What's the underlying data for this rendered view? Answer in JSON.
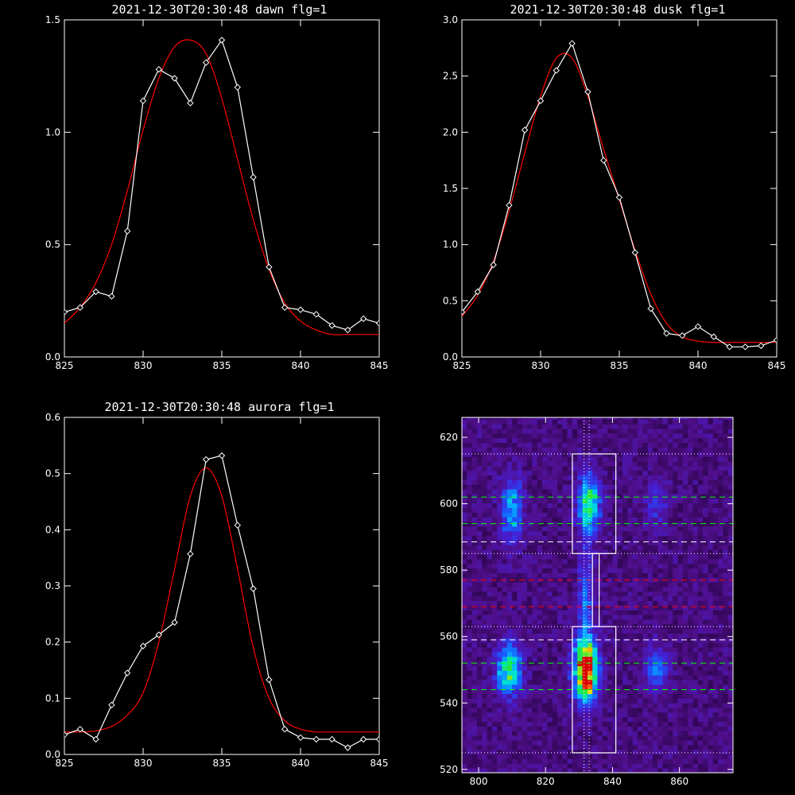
{
  "chart_data": [
    {
      "type": "line",
      "title": "2021-12-30T20:30:48 dawn flg=1",
      "xlim": [
        825,
        845
      ],
      "ylim": [
        0,
        1.5
      ],
      "xticks": [
        825,
        830,
        835,
        840,
        845
      ],
      "xtick_labels": [
        "825",
        "830",
        "835",
        "840",
        "845"
      ],
      "yticks": [
        0,
        0.5,
        1.0,
        1.5
      ],
      "ytick_labels": [
        "0.0",
        "0.5",
        "1.0",
        "1.5"
      ],
      "grid": false,
      "series": [
        {
          "color": "#ffffff",
          "marker": "diamond",
          "x": [
            825,
            826,
            827,
            828,
            829,
            830,
            831,
            832,
            833,
            834,
            835,
            836,
            837,
            838,
            839,
            840,
            841,
            842,
            843,
            844,
            845
          ],
          "y": [
            0.2,
            0.22,
            0.29,
            0.27,
            0.56,
            1.14,
            1.28,
            1.24,
            1.13,
            1.31,
            1.41,
            1.2,
            0.8,
            0.4,
            0.22,
            0.21,
            0.19,
            0.14,
            0.12,
            0.17,
            0.15
          ]
        },
        {
          "color": "#ff0000",
          "marker": "none",
          "x": [
            825,
            826,
            827,
            828,
            829,
            830,
            831,
            832,
            833,
            834,
            835,
            836,
            837,
            838,
            839,
            840,
            841,
            842,
            843,
            844,
            845
          ],
          "y": [
            0.15,
            0.22,
            0.33,
            0.5,
            0.74,
            1.01,
            1.24,
            1.38,
            1.41,
            1.35,
            1.15,
            0.88,
            0.61,
            0.39,
            0.24,
            0.16,
            0.12,
            0.1,
            0.1,
            0.1,
            0.1
          ]
        }
      ]
    },
    {
      "type": "line",
      "title": "2021-12-30T20:30:48 dusk flg=1",
      "xlim": [
        825,
        845
      ],
      "ylim": [
        0,
        3.0
      ],
      "xticks": [
        825,
        830,
        835,
        840,
        845
      ],
      "xtick_labels": [
        "825",
        "830",
        "835",
        "840",
        "845"
      ],
      "yticks": [
        0,
        0.5,
        1.0,
        1.5,
        2.0,
        2.5,
        3.0
      ],
      "ytick_labels": [
        "0.0",
        "0.5",
        "1.0",
        "1.5",
        "2.0",
        "2.5",
        "3.0"
      ],
      "grid": false,
      "series": [
        {
          "color": "#ffffff",
          "marker": "diamond",
          "x": [
            825,
            826,
            827,
            828,
            829,
            830,
            831,
            832,
            833,
            834,
            835,
            836,
            837,
            838,
            839,
            840,
            841,
            842,
            843,
            844,
            845
          ],
          "y": [
            0.4,
            0.58,
            0.82,
            1.35,
            2.02,
            2.28,
            2.55,
            2.79,
            2.36,
            1.75,
            1.42,
            0.93,
            0.43,
            0.21,
            0.19,
            0.27,
            0.18,
            0.09,
            0.09,
            0.1,
            0.15
          ]
        },
        {
          "color": "#ff0000",
          "marker": "none",
          "x": [
            825,
            826,
            827,
            828,
            829,
            830,
            831,
            832,
            833,
            834,
            835,
            836,
            837,
            838,
            839,
            840,
            841,
            842,
            843,
            844,
            845
          ],
          "y": [
            0.36,
            0.55,
            0.85,
            1.3,
            1.82,
            2.32,
            2.66,
            2.66,
            2.32,
            1.85,
            1.4,
            0.95,
            0.56,
            0.3,
            0.18,
            0.14,
            0.13,
            0.13,
            0.13,
            0.13,
            0.13
          ]
        }
      ]
    },
    {
      "type": "line",
      "title": "2021-12-30T20:30:48 aurora flg=1",
      "xlim": [
        825,
        845
      ],
      "ylim": [
        0,
        0.6
      ],
      "xticks": [
        825,
        830,
        835,
        840,
        845
      ],
      "xtick_labels": [
        "825",
        "830",
        "835",
        "840",
        "845"
      ],
      "yticks": [
        0,
        0.1,
        0.2,
        0.3,
        0.4,
        0.5,
        0.6
      ],
      "ytick_labels": [
        "0.0",
        "0.1",
        "0.2",
        "0.3",
        "0.4",
        "0.5",
        "0.6"
      ],
      "grid": false,
      "series": [
        {
          "color": "#ffffff",
          "marker": "diamond",
          "x": [
            825,
            826,
            827,
            828,
            829,
            830,
            831,
            832,
            833,
            834,
            835,
            836,
            837,
            838,
            839,
            840,
            841,
            842,
            843,
            844,
            845
          ],
          "y": [
            0.035,
            0.045,
            0.027,
            0.088,
            0.145,
            0.193,
            0.213,
            0.235,
            0.357,
            0.525,
            0.532,
            0.408,
            0.295,
            0.133,
            0.045,
            0.03,
            0.027,
            0.027,
            0.012,
            0.027,
            0.027
          ]
        },
        {
          "color": "#ff0000",
          "marker": "none",
          "x": [
            825,
            826,
            827,
            828,
            829,
            830,
            831,
            832,
            833,
            834,
            835,
            836,
            837,
            838,
            839,
            840,
            841,
            842,
            843,
            844,
            845
          ],
          "y": [
            0.04,
            0.04,
            0.042,
            0.05,
            0.07,
            0.11,
            0.2,
            0.33,
            0.46,
            0.51,
            0.46,
            0.33,
            0.19,
            0.1,
            0.06,
            0.045,
            0.04,
            0.04,
            0.04,
            0.04,
            0.04
          ]
        }
      ]
    },
    {
      "type": "heatmap",
      "title": "",
      "xlim": [
        795,
        876
      ],
      "ylim": [
        519,
        626
      ],
      "xticks": [
        800,
        820,
        840,
        860
      ],
      "xtick_labels": [
        "800",
        "820",
        "840",
        "860"
      ],
      "yticks": [
        520,
        540,
        560,
        580,
        600,
        620
      ],
      "ytick_labels": [
        "520",
        "540",
        "560",
        "580",
        "600",
        "620"
      ],
      "colormap": "purple-blue-cyan-green-yellow-red",
      "blobs": [
        {
          "cx": 832,
          "cy": 550,
          "sx": 2.4,
          "sy": 6.5,
          "amp": 1.0
        },
        {
          "cx": 833,
          "cy": 600,
          "sx": 2.2,
          "sy": 6.0,
          "amp": 0.6
        },
        {
          "cx": 832,
          "cy": 573,
          "sx": 1.5,
          "sy": 9.0,
          "amp": 0.3
        },
        {
          "cx": 809,
          "cy": 550,
          "sx": 2.6,
          "sy": 5.5,
          "amp": 0.55
        },
        {
          "cx": 810,
          "cy": 598,
          "sx": 2.3,
          "sy": 7.0,
          "amp": 0.38
        },
        {
          "cx": 853,
          "cy": 550,
          "sx": 2.4,
          "sy": 4.5,
          "amp": 0.3
        },
        {
          "cx": 853,
          "cy": 600,
          "sx": 2.4,
          "sy": 5.0,
          "amp": 0.18
        }
      ],
      "boxes": [
        {
          "x0": 828,
          "x1": 841,
          "y0": 585,
          "y1": 615,
          "color": "#ffffff"
        },
        {
          "x0": 828,
          "x1": 841,
          "y0": 525,
          "y1": 563,
          "color": "#ffffff"
        },
        {
          "x0": 834,
          "x1": 836,
          "y0": 563,
          "y1": 585,
          "color": "#ffffff"
        }
      ],
      "hlines": [
        {
          "y": 615,
          "color": "#ffffff",
          "style": "dotted"
        },
        {
          "y": 602,
          "color": "#00ff00",
          "style": "dashed"
        },
        {
          "y": 594,
          "color": "#00ff00",
          "style": "dashed"
        },
        {
          "y": 588.5,
          "color": "#ffffff",
          "style": "dashed"
        },
        {
          "y": 585,
          "color": "#ffffff",
          "style": "dotted"
        },
        {
          "y": 577,
          "color": "#ff0000",
          "style": "dashed"
        },
        {
          "y": 569,
          "color": "#ff0000",
          "style": "dashed"
        },
        {
          "y": 563,
          "color": "#ffffff",
          "style": "dotted"
        },
        {
          "y": 559,
          "color": "#ffffff",
          "style": "dashed"
        },
        {
          "y": 552,
          "color": "#00ff00",
          "style": "dashed"
        },
        {
          "y": 544,
          "color": "#00ff00",
          "style": "dashed"
        },
        {
          "y": 525,
          "color": "#ffffff",
          "style": "dotted"
        }
      ],
      "vlines": [
        {
          "x": 831.5,
          "color": "#ffffff",
          "style": "dotted"
        },
        {
          "x": 833,
          "color": "#ffffff",
          "style": "dotted"
        }
      ]
    }
  ]
}
